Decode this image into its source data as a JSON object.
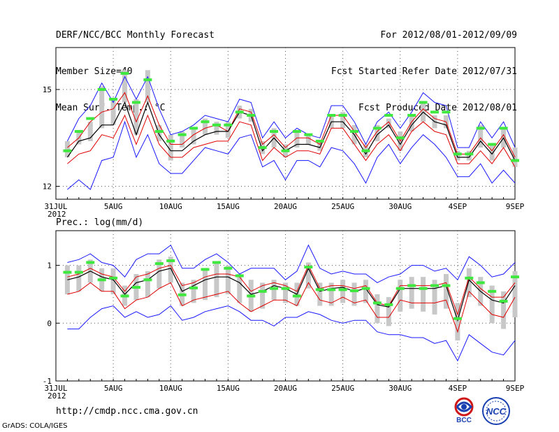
{
  "header": {
    "left": [
      "DERF/NCC/BCC Monthly Forecast",
      "Member Size=40",
      "Mean Surf. Temp.: °C"
    ],
    "right": [
      "For 2012/08/01-2012/09/09",
      "Fcst Started Refer Date 2012/07/31",
      "Fcst Produced Date 2012/08/01"
    ]
  },
  "footer": {
    "url": "http://cmdp.ncc.cma.gov.cn",
    "grads": "GrADS: COLA/IGES",
    "bcc_logo": "BCC",
    "ncc_logo": "NCC"
  },
  "colors": {
    "upper_envelope": "#1818ff",
    "red_band": "#e00000",
    "mean": "#000000",
    "box": "#c8c8c8",
    "marker": "#3ee83e"
  },
  "chart_data": [
    {
      "type": "line",
      "title": "Mean Surf. Temp.: °C",
      "ylabel": "°C",
      "ylim": [
        11.6,
        16.3
      ],
      "yticks": [
        12,
        15
      ],
      "xtick_labels": [
        "31JUL\n2012",
        "5AUG",
        "10AUG",
        "15AUG",
        "20AUG",
        "25AUG",
        "30AUG",
        "4SEP",
        "9SEP"
      ],
      "xtick_days": [
        0,
        5,
        10,
        15,
        20,
        25,
        30,
        35,
        40
      ],
      "days": [
        1,
        2,
        3,
        4,
        5,
        6,
        7,
        8,
        9,
        10,
        11,
        12,
        13,
        14,
        15,
        16,
        17,
        18,
        19,
        20,
        21,
        22,
        23,
        24,
        25,
        26,
        27,
        28,
        29,
        30,
        31,
        32,
        33,
        34,
        35,
        36,
        37,
        38,
        39,
        40
      ],
      "series": [
        {
          "name": "max",
          "values": [
            13.4,
            14.1,
            14.5,
            15.2,
            14.6,
            15.4,
            14.7,
            15.4,
            14.4,
            13.6,
            13.7,
            13.9,
            14.2,
            14.1,
            14.0,
            14.7,
            14.6,
            13.5,
            14.0,
            13.5,
            13.8,
            13.6,
            13.5,
            14.5,
            14.5,
            14.0,
            13.3,
            14.0,
            14.3,
            13.8,
            14.3,
            14.9,
            14.6,
            14.5,
            13.2,
            13.2,
            14.0,
            13.5,
            14.0,
            13.2
          ]
        },
        {
          "name": "upper",
          "values": [
            13.2,
            13.5,
            14.0,
            14.3,
            14.4,
            14.9,
            14.0,
            14.8,
            13.9,
            13.3,
            13.3,
            13.6,
            13.8,
            13.9,
            13.7,
            14.4,
            14.3,
            13.3,
            13.6,
            13.2,
            13.5,
            13.5,
            13.3,
            14.2,
            14.2,
            13.7,
            13.2,
            13.7,
            14.0,
            13.4,
            14.0,
            14.4,
            14.1,
            14.0,
            13.0,
            13.0,
            13.5,
            13.1,
            13.6,
            12.9
          ]
        },
        {
          "name": "mean",
          "values": [
            12.9,
            13.4,
            13.5,
            13.9,
            13.9,
            14.6,
            13.6,
            14.6,
            13.6,
            13.1,
            13.1,
            13.4,
            13.6,
            13.7,
            13.7,
            14.3,
            14.2,
            13.1,
            13.5,
            13.1,
            13.3,
            13.3,
            13.2,
            14.0,
            14.0,
            13.6,
            13.0,
            13.6,
            13.9,
            13.3,
            13.9,
            14.3,
            14.0,
            13.9,
            12.9,
            12.9,
            13.4,
            13.0,
            13.5,
            12.8
          ]
        },
        {
          "name": "lower",
          "values": [
            12.7,
            13.0,
            13.1,
            13.6,
            13.5,
            14.2,
            13.3,
            14.2,
            13.3,
            12.9,
            12.9,
            13.2,
            13.3,
            13.4,
            13.4,
            14.0,
            13.9,
            12.8,
            13.2,
            12.9,
            13.1,
            13.1,
            13.0,
            13.8,
            13.8,
            13.3,
            12.8,
            13.3,
            13.6,
            13.1,
            13.7,
            14.0,
            13.7,
            13.6,
            12.7,
            12.7,
            13.1,
            12.7,
            13.2,
            12.6
          ]
        },
        {
          "name": "min",
          "values": [
            11.9,
            12.2,
            11.9,
            12.8,
            12.9,
            14.0,
            12.9,
            13.6,
            12.7,
            12.4,
            12.4,
            12.8,
            13.2,
            13.1,
            13.0,
            13.5,
            13.6,
            12.6,
            12.8,
            12.2,
            12.8,
            12.8,
            12.6,
            13.2,
            13.1,
            12.7,
            12.1,
            12.9,
            13.3,
            12.7,
            13.2,
            13.6,
            13.3,
            12.9,
            12.3,
            12.3,
            12.7,
            12.1,
            12.5,
            12.1
          ]
        },
        {
          "name": "observed",
          "values": [
            13.1,
            13.7,
            14.1,
            15.0,
            14.7,
            15.5,
            14.6,
            15.3,
            13.7,
            13.4,
            13.6,
            13.8,
            14.0,
            13.9,
            13.9,
            14.3,
            14.2,
            13.2,
            13.7,
            13.1,
            13.7,
            13.6,
            13.4,
            14.2,
            14.2,
            13.7,
            13.1,
            13.8,
            14.2,
            13.5,
            14.2,
            14.6,
            14.3,
            14.3,
            13.0,
            13.0,
            13.8,
            13.3,
            13.8,
            12.8
          ]
        },
        {
          "name": "box_top",
          "values": [
            13.4,
            13.7,
            14.0,
            15.1,
            14.7,
            15.6,
            14.7,
            15.6,
            13.9,
            13.6,
            13.7,
            13.8,
            14.1,
            14.0,
            14.0,
            14.5,
            14.4,
            13.4,
            13.8,
            13.3,
            13.7,
            13.6,
            13.4,
            14.2,
            14.3,
            13.9,
            13.3,
            13.9,
            14.1,
            13.7,
            14.2,
            14.6,
            14.2,
            14.2,
            13.1,
            13.1,
            13.9,
            13.3,
            13.8,
            13.2
          ]
        },
        {
          "name": "box_bottom",
          "values": [
            12.9,
            13.3,
            13.4,
            13.8,
            13.9,
            14.6,
            13.6,
            14.6,
            13.4,
            12.8,
            13.2,
            13.3,
            13.6,
            13.6,
            13.5,
            14.1,
            14.0,
            13.0,
            13.2,
            12.9,
            13.2,
            13.3,
            13.1,
            13.8,
            13.8,
            13.3,
            12.9,
            13.4,
            13.8,
            13.1,
            13.7,
            14.0,
            13.8,
            13.8,
            12.8,
            12.8,
            13.2,
            12.8,
            13.2,
            12.6
          ]
        }
      ]
    },
    {
      "type": "line",
      "title": "Prec.: log(mm/d)",
      "ylabel": "log(mm/d)",
      "ylim": [
        -1,
        1.6
      ],
      "yticks": [
        -1,
        0,
        1
      ],
      "xtick_labels": [
        "31JUL\n2012",
        "5AUG",
        "10AUG",
        "15AUG",
        "20AUG",
        "25AUG",
        "30AUG",
        "4SEP",
        "9SEP"
      ],
      "xtick_days": [
        0,
        5,
        10,
        15,
        20,
        25,
        30,
        35,
        40
      ],
      "days": [
        1,
        2,
        3,
        4,
        5,
        6,
        7,
        8,
        9,
        10,
        11,
        12,
        13,
        14,
        15,
        16,
        17,
        18,
        19,
        20,
        21,
        22,
        23,
        24,
        25,
        26,
        27,
        28,
        29,
        30,
        31,
        32,
        33,
        34,
        35,
        36,
        37,
        38,
        39,
        40
      ],
      "series": [
        {
          "name": "max",
          "values": [
            1.05,
            1.1,
            1.2,
            1.05,
            1.0,
            0.8,
            1.1,
            1.2,
            1.2,
            1.35,
            0.95,
            0.95,
            1.1,
            1.2,
            1.05,
            0.85,
            0.95,
            0.95,
            0.95,
            0.75,
            0.9,
            1.35,
            0.95,
            0.85,
            0.9,
            0.85,
            0.85,
            0.7,
            0.8,
            0.85,
            1.0,
            1.0,
            0.9,
            0.95,
            0.75,
            1.15,
            1.0,
            0.8,
            0.85,
            1.05
          ]
        },
        {
          "name": "upper",
          "values": [
            0.8,
            0.85,
            0.95,
            0.85,
            0.8,
            0.55,
            0.8,
            0.85,
            0.95,
            1.0,
            0.65,
            0.7,
            0.8,
            0.85,
            0.85,
            0.8,
            0.55,
            0.65,
            0.7,
            0.65,
            0.55,
            1.0,
            0.6,
            0.65,
            0.65,
            0.6,
            0.65,
            0.35,
            0.3,
            0.65,
            0.65,
            0.65,
            0.65,
            0.7,
            0.15,
            0.8,
            0.6,
            0.45,
            0.45,
            0.7
          ]
        },
        {
          "name": "mean",
          "values": [
            0.75,
            0.8,
            0.9,
            0.8,
            0.75,
            0.5,
            0.7,
            0.75,
            0.9,
            0.95,
            0.55,
            0.65,
            0.75,
            0.8,
            0.8,
            0.7,
            0.5,
            0.55,
            0.65,
            0.6,
            0.5,
            0.95,
            0.55,
            0.6,
            0.62,
            0.55,
            0.6,
            0.32,
            0.28,
            0.6,
            0.6,
            0.6,
            0.6,
            0.65,
            0.05,
            0.75,
            0.55,
            0.4,
            0.35,
            0.65
          ]
        },
        {
          "name": "lower",
          "values": [
            0.5,
            0.55,
            0.7,
            0.55,
            0.55,
            0.25,
            0.4,
            0.45,
            0.6,
            0.7,
            0.3,
            0.4,
            0.45,
            0.5,
            0.55,
            0.35,
            0.2,
            0.3,
            0.4,
            0.4,
            0.3,
            0.7,
            0.4,
            0.35,
            0.45,
            0.35,
            0.4,
            0.1,
            0.1,
            0.4,
            0.35,
            0.35,
            0.35,
            0.4,
            -0.15,
            0.55,
            0.35,
            0.15,
            0.1,
            0.45
          ]
        },
        {
          "name": "min",
          "values": [
            -0.1,
            -0.1,
            0.1,
            0.25,
            0.3,
            0.1,
            0.2,
            0.1,
            0.15,
            0.3,
            0.05,
            0.1,
            0.2,
            0.25,
            0.3,
            0.2,
            0.05,
            0.05,
            -0.05,
            0.1,
            0.1,
            0.2,
            0.15,
            0.05,
            0.0,
            0.05,
            0.05,
            -0.15,
            -0.2,
            -0.2,
            -0.25,
            -0.25,
            -0.35,
            -0.3,
            -0.65,
            -0.2,
            -0.35,
            -0.5,
            -0.55,
            -0.3
          ]
        },
        {
          "name": "observed",
          "values": [
            0.88,
            0.88,
            1.05,
            0.75,
            0.78,
            0.47,
            0.62,
            0.75,
            1.03,
            1.08,
            0.49,
            0.61,
            0.93,
            1.05,
            0.95,
            0.82,
            0.47,
            0.55,
            0.6,
            0.6,
            0.47,
            0.97,
            0.58,
            0.58,
            0.58,
            0.56,
            0.6,
            0.35,
            0.32,
            0.6,
            0.65,
            0.6,
            0.65,
            0.65,
            0.08,
            0.78,
            0.7,
            0.55,
            0.38,
            0.8
          ]
        },
        {
          "name": "box_top",
          "values": [
            1.0,
            1.0,
            1.1,
            0.95,
            0.95,
            0.65,
            0.85,
            0.9,
            1.1,
            1.15,
            0.7,
            0.75,
            0.95,
            1.05,
            1.0,
            0.85,
            0.75,
            0.7,
            0.75,
            0.7,
            0.7,
            1.05,
            0.7,
            0.7,
            0.75,
            0.7,
            0.75,
            0.5,
            0.45,
            0.75,
            0.8,
            0.8,
            0.75,
            0.85,
            0.35,
            0.95,
            0.8,
            0.65,
            0.55,
            0.9
          ]
        },
        {
          "name": "box_bottom",
          "values": [
            0.5,
            0.55,
            0.7,
            0.55,
            0.5,
            0.3,
            0.4,
            0.45,
            0.6,
            0.7,
            0.3,
            0.35,
            0.4,
            0.45,
            0.5,
            0.35,
            0.2,
            0.25,
            0.4,
            0.35,
            0.3,
            0.6,
            0.3,
            0.3,
            0.35,
            0.3,
            0.35,
            0.0,
            -0.05,
            0.2,
            0.25,
            0.2,
            0.15,
            0.25,
            -0.3,
            0.45,
            0.3,
            0.0,
            -0.1,
            0.1
          ]
        }
      ]
    }
  ]
}
